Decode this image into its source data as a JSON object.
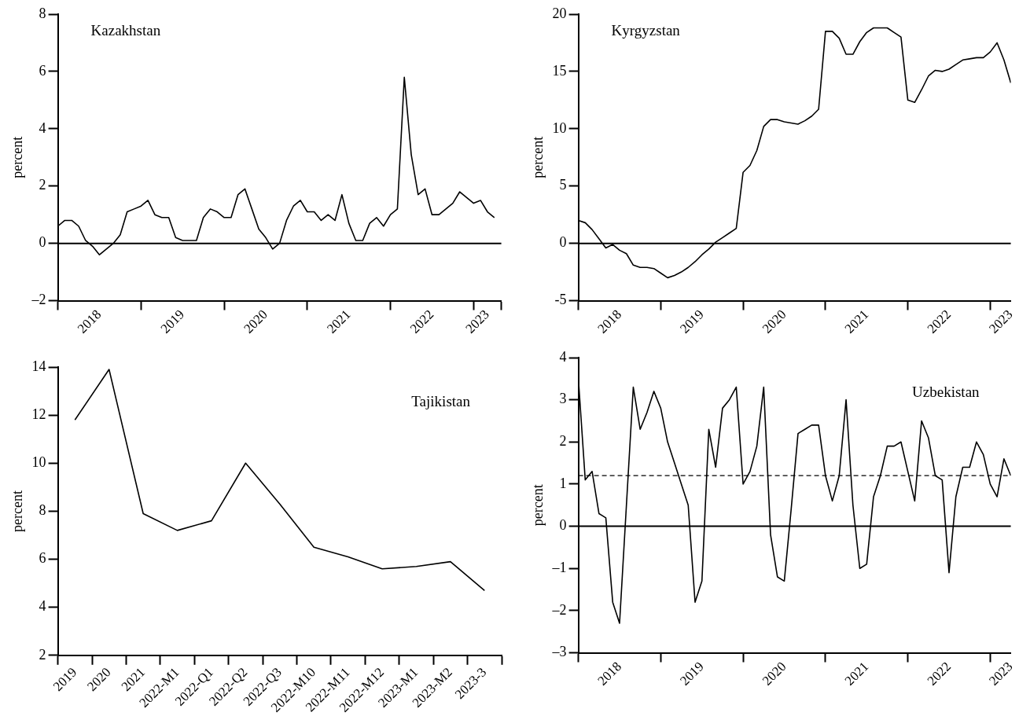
{
  "chart_data": [
    {
      "type": "line",
      "title": "Kazakhstan",
      "ylabel": "percent",
      "grid": false,
      "legend": false,
      "marker": "none",
      "x": [
        "2018-01",
        "2018-02",
        "2018-03",
        "2018-04",
        "2018-05",
        "2018-06",
        "2018-07",
        "2018-08",
        "2018-09",
        "2018-10",
        "2018-11",
        "2018-12",
        "2019-01",
        "2019-02",
        "2019-03",
        "2019-04",
        "2019-05",
        "2019-06",
        "2019-07",
        "2019-08",
        "2019-09",
        "2019-10",
        "2019-11",
        "2019-12",
        "2020-01",
        "2020-02",
        "2020-03",
        "2020-04",
        "2020-05",
        "2020-06",
        "2020-07",
        "2020-08",
        "2020-09",
        "2020-10",
        "2020-11",
        "2020-12",
        "2021-01",
        "2021-02",
        "2021-03",
        "2021-04",
        "2021-05",
        "2021-06",
        "2021-07",
        "2021-08",
        "2021-09",
        "2021-10",
        "2021-11",
        "2021-12",
        "2022-01",
        "2022-02",
        "2022-03",
        "2022-04",
        "2022-05",
        "2022-06",
        "2022-07",
        "2022-08",
        "2022-09",
        "2022-10",
        "2022-11",
        "2022-12",
        "2023-01",
        "2023-02",
        "2023-03",
        "2023-04"
      ],
      "series": [
        {
          "color": "#000000",
          "values": [
            0.6,
            0.8,
            0.8,
            0.6,
            0.1,
            -0.1,
            -0.4,
            -0.2,
            0.0,
            0.3,
            1.1,
            1.2,
            1.3,
            1.5,
            1.0,
            0.9,
            0.9,
            0.2,
            0.1,
            0.1,
            0.1,
            0.9,
            1.2,
            1.1,
            0.9,
            0.9,
            1.7,
            1.9,
            1.2,
            0.5,
            0.2,
            -0.2,
            0.0,
            0.8,
            1.3,
            1.5,
            1.1,
            1.1,
            0.8,
            1.0,
            0.8,
            1.7,
            0.7,
            0.1,
            0.1,
            0.7,
            0.9,
            0.6,
            1.0,
            1.2,
            5.8,
            3.1,
            1.7,
            1.9,
            1.0,
            1.0,
            1.2,
            1.4,
            1.8,
            1.6,
            1.4,
            1.5,
            1.1,
            0.9
          ]
        }
      ],
      "xlim": [
        "2018-01",
        "2023-05"
      ],
      "xticks": [
        {
          "value": "2018-01",
          "label": null
        },
        {
          "value": "2018-07",
          "label": "2018"
        },
        {
          "value": "2019-01",
          "label": null
        },
        {
          "value": "2019-07",
          "label": "2019"
        },
        {
          "value": "2020-01",
          "label": null
        },
        {
          "value": "2020-07",
          "label": "2020"
        },
        {
          "value": "2021-01",
          "label": null
        },
        {
          "value": "2021-07",
          "label": "2021"
        },
        {
          "value": "2022-01",
          "label": null
        },
        {
          "value": "2022-07",
          "label": "2022"
        },
        {
          "value": "2023-01",
          "label": null
        },
        {
          "value": "2023-03",
          "label": "2023"
        },
        {
          "value": "2023-05",
          "label": null
        }
      ],
      "ylim": [
        -2,
        8
      ],
      "yticks": [
        {
          "value": -2,
          "label": "–2"
        },
        0,
        2,
        4,
        6,
        8
      ],
      "ref_lines": [
        {
          "axis": "y",
          "value": 0,
          "color": "#000000",
          "line_style": "solid"
        }
      ]
    },
    {
      "type": "line",
      "title": "Kyrgyzstan",
      "ylabel": "percent",
      "grid": false,
      "legend": false,
      "marker": "none",
      "x": [
        "2018-01",
        "2018-02",
        "2018-03",
        "2018-04",
        "2018-05",
        "2018-06",
        "2018-07",
        "2018-08",
        "2018-09",
        "2018-10",
        "2018-11",
        "2018-12",
        "2019-01",
        "2019-02",
        "2019-03",
        "2019-04",
        "2019-05",
        "2019-06",
        "2019-07",
        "2019-08",
        "2019-09",
        "2019-10",
        "2019-11",
        "2019-12",
        "2020-01",
        "2020-02",
        "2020-03",
        "2020-04",
        "2020-05",
        "2020-06",
        "2020-07",
        "2020-08",
        "2020-09",
        "2020-10",
        "2020-11",
        "2020-12",
        "2021-01",
        "2021-02",
        "2021-03",
        "2021-04",
        "2021-05",
        "2021-06",
        "2021-07",
        "2021-08",
        "2021-09",
        "2021-10",
        "2021-11",
        "2021-12",
        "2022-01",
        "2022-02",
        "2022-03",
        "2022-04",
        "2022-05",
        "2022-06",
        "2022-07",
        "2022-08",
        "2022-09",
        "2022-10",
        "2022-11",
        "2022-12",
        "2023-01",
        "2023-02",
        "2023-03",
        "2023-04"
      ],
      "series": [
        {
          "color": "#000000",
          "values": [
            2.0,
            1.8,
            1.2,
            0.4,
            -0.4,
            -0.1,
            -0.6,
            -0.9,
            -1.9,
            -2.1,
            -2.1,
            -2.2,
            -2.6,
            -3.0,
            -2.8,
            -2.5,
            -2.1,
            -1.6,
            -1.0,
            -0.5,
            0.1,
            0.5,
            0.9,
            1.3,
            6.2,
            6.8,
            8.1,
            10.2,
            10.8,
            10.8,
            10.6,
            10.5,
            10.4,
            10.7,
            11.1,
            11.7,
            18.5,
            18.5,
            17.9,
            16.5,
            16.5,
            17.6,
            18.4,
            18.8,
            18.8,
            18.8,
            18.4,
            18.0,
            12.5,
            12.3,
            13.4,
            14.6,
            15.1,
            15.0,
            15.2,
            15.6,
            16.0,
            16.1,
            16.2,
            16.2,
            16.7,
            17.5,
            16.0,
            14.0
          ]
        }
      ],
      "xlim": [
        "2018-01",
        "2023-04"
      ],
      "xticks": [
        {
          "value": "2018-01",
          "label": null
        },
        {
          "value": "2018-07",
          "label": "2018"
        },
        {
          "value": "2019-01",
          "label": null
        },
        {
          "value": "2019-07",
          "label": "2019"
        },
        {
          "value": "2020-01",
          "label": null
        },
        {
          "value": "2020-07",
          "label": "2020"
        },
        {
          "value": "2021-01",
          "label": null
        },
        {
          "value": "2021-07",
          "label": "2021"
        },
        {
          "value": "2022-01",
          "label": null
        },
        {
          "value": "2022-07",
          "label": "2022"
        },
        {
          "value": "2023-01",
          "label": null
        },
        {
          "value": "2023-04",
          "label": "2023"
        }
      ],
      "ylim": [
        -5,
        20
      ],
      "yticks": [
        -5,
        0,
        5,
        10,
        15,
        20
      ],
      "ref_lines": [
        {
          "axis": "y",
          "value": 0,
          "color": "#000000",
          "line_style": "solid"
        }
      ]
    },
    {
      "type": "line",
      "title": "Tajikistan",
      "ylabel": "percent",
      "grid": false,
      "legend": false,
      "marker": "none",
      "categories": [
        "2019",
        "2020",
        "2021",
        "2022-M1",
        "2022-Q1",
        "2022-Q2",
        "2022-Q3",
        "2022-M10",
        "2022-M11",
        "2022-M12",
        "2023-M1",
        "2023-M2",
        "2023-3"
      ],
      "series": [
        {
          "color": "#000000",
          "values": [
            11.8,
            13.9,
            7.9,
            7.2,
            7.6,
            10.0,
            8.3,
            6.5,
            6.1,
            5.6,
            5.7,
            5.9,
            4.7
          ]
        }
      ],
      "ylim": [
        2,
        14
      ],
      "yticks": [
        2,
        4,
        6,
        8,
        10,
        12,
        14
      ]
    },
    {
      "type": "line",
      "title": "Uzbekistan",
      "ylabel": "percent",
      "grid": false,
      "legend": false,
      "marker": "none",
      "x": [
        "2018-01",
        "2018-02",
        "2018-03",
        "2018-04",
        "2018-05",
        "2018-06",
        "2018-07",
        "2018-08",
        "2018-09",
        "2018-10",
        "2018-11",
        "2018-12",
        "2019-01",
        "2019-02",
        "2019-03",
        "2019-04",
        "2019-05",
        "2019-06",
        "2019-07",
        "2019-08",
        "2019-09",
        "2019-10",
        "2019-11",
        "2019-12",
        "2020-01",
        "2020-02",
        "2020-03",
        "2020-04",
        "2020-05",
        "2020-06",
        "2020-07",
        "2020-08",
        "2020-09",
        "2020-10",
        "2020-11",
        "2020-12",
        "2021-01",
        "2021-02",
        "2021-03",
        "2021-04",
        "2021-05",
        "2021-06",
        "2021-07",
        "2021-08",
        "2021-09",
        "2021-10",
        "2021-11",
        "2021-12",
        "2022-01",
        "2022-02",
        "2022-03",
        "2022-04",
        "2022-05",
        "2022-06",
        "2022-07",
        "2022-08",
        "2022-09",
        "2022-10",
        "2022-11",
        "2022-12",
        "2023-01",
        "2023-02",
        "2023-03",
        "2023-04"
      ],
      "series": [
        {
          "color": "#000000",
          "values": [
            3.5,
            1.1,
            1.3,
            0.3,
            0.2,
            -1.8,
            -2.3,
            0.5,
            3.3,
            2.3,
            2.7,
            3.2,
            2.8,
            2.0,
            1.5,
            1.0,
            0.5,
            -1.8,
            -1.3,
            2.3,
            1.4,
            2.8,
            3.0,
            3.3,
            1.0,
            1.3,
            1.9,
            3.3,
            -0.2,
            -1.2,
            -1.3,
            0.4,
            2.2,
            2.3,
            2.4,
            2.4,
            1.2,
            0.6,
            1.2,
            3.0,
            0.5,
            -1.0,
            -0.9,
            0.7,
            1.2,
            1.9,
            1.9,
            2.0,
            1.3,
            0.6,
            2.5,
            2.1,
            1.2,
            1.1,
            -1.1,
            0.7,
            1.4,
            1.4,
            2.0,
            1.7,
            1.0,
            0.7,
            1.6,
            1.2
          ]
        }
      ],
      "xlim": [
        "2018-01",
        "2023-04"
      ],
      "xticks": [
        {
          "value": "2018-01",
          "label": null
        },
        {
          "value": "2018-07",
          "label": "2018"
        },
        {
          "value": "2019-01",
          "label": null
        },
        {
          "value": "2019-07",
          "label": "2019"
        },
        {
          "value": "2020-01",
          "label": null
        },
        {
          "value": "2020-07",
          "label": "2020"
        },
        {
          "value": "2021-01",
          "label": null
        },
        {
          "value": "2021-07",
          "label": "2021"
        },
        {
          "value": "2022-01",
          "label": null
        },
        {
          "value": "2022-07",
          "label": "2022"
        },
        {
          "value": "2023-01",
          "label": null
        },
        {
          "value": "2023-04",
          "label": "2023"
        }
      ],
      "ylim": [
        -3,
        4
      ],
      "yticks": [
        {
          "value": -3,
          "label": "–3"
        },
        {
          "value": -2,
          "label": "–2"
        },
        {
          "value": -1,
          "label": "–1"
        },
        0,
        1,
        2,
        3,
        4
      ],
      "ref_lines": [
        {
          "axis": "y",
          "value": 0,
          "color": "#000000",
          "line_style": "solid"
        },
        {
          "axis": "y",
          "value": 1.2,
          "color": "#000000",
          "line_style": "dashed"
        }
      ]
    }
  ]
}
